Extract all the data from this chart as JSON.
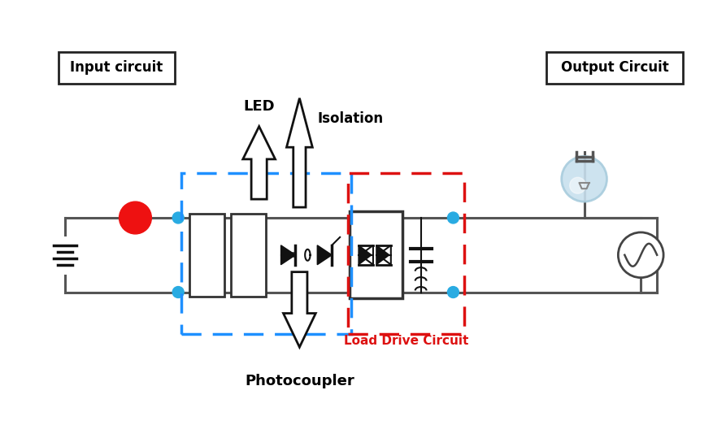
{
  "bg_color": "#ffffff",
  "fig_width": 8.93,
  "fig_height": 5.39,
  "dpi": 100,
  "labels": {
    "input_circuit": "Input circuit",
    "output_circuit": "Output Circuit",
    "led": "LED",
    "isolation": "Isolation",
    "photocoupler": "Photocoupler",
    "load_drive": "Load Drive Circuit"
  },
  "colors": {
    "blue_dot": "#29ABE2",
    "red_circle": "#EE1111",
    "dashed_blue": "#1E90FF",
    "dashed_red": "#DD1111",
    "wire": "#555555",
    "black": "#111111",
    "arrow_fill": "#FFFFFF",
    "arrow_edge": "#111111",
    "bulb_fill": "#A8CCDD",
    "bulb_glow": "#C8E0EE",
    "ac_circle": "#444444"
  },
  "wire_lw": 2.2,
  "blue_dot_r": 7,
  "red_circle_r": 20
}
